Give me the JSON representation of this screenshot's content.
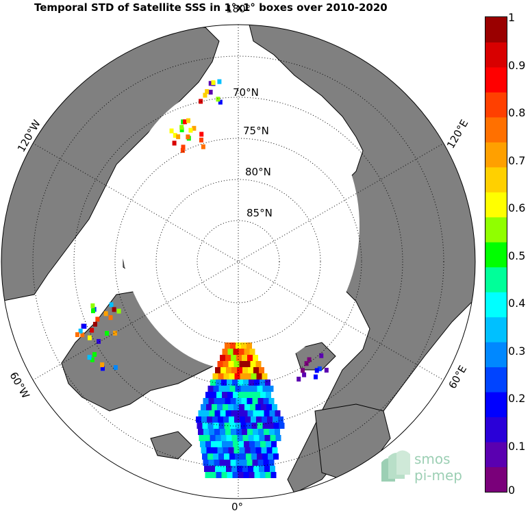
{
  "title": "Temporal STD of Satellite SSS in 1°x1° boxes over 2010-2020",
  "colorbar": {
    "ticks": [
      "1",
      "0.9",
      "0.8",
      "0.7",
      "0.6",
      "0.5",
      "0.4",
      "0.3",
      "0.2",
      "0.1",
      "0"
    ],
    "min": 0,
    "max": 1,
    "colors": [
      "#7a007a",
      "#5a00b0",
      "#2a00d8",
      "#0000ff",
      "#0044ff",
      "#0088ff",
      "#00c0ff",
      "#00ffff",
      "#00ff99",
      "#00ff00",
      "#90ff00",
      "#ffff00",
      "#ffd000",
      "#ffa000",
      "#ff7000",
      "#ff4000",
      "#ff0000",
      "#d80000",
      "#9a0000"
    ]
  },
  "latitude_labels": [
    "70°N",
    "75°N",
    "80°N",
    "85°N"
  ],
  "longitude_labels": {
    "top": "180°",
    "right": "120°E",
    "right_lower": "60°E",
    "bottom": "0°",
    "left_lower": "60°W",
    "left": "120°W"
  },
  "logo": {
    "line1": "smos",
    "line2": "pi-mep"
  },
  "colors": {
    "land": "#808080",
    "ocean": "#ffffff",
    "ice": "#ffffff",
    "coast": "#000000"
  }
}
